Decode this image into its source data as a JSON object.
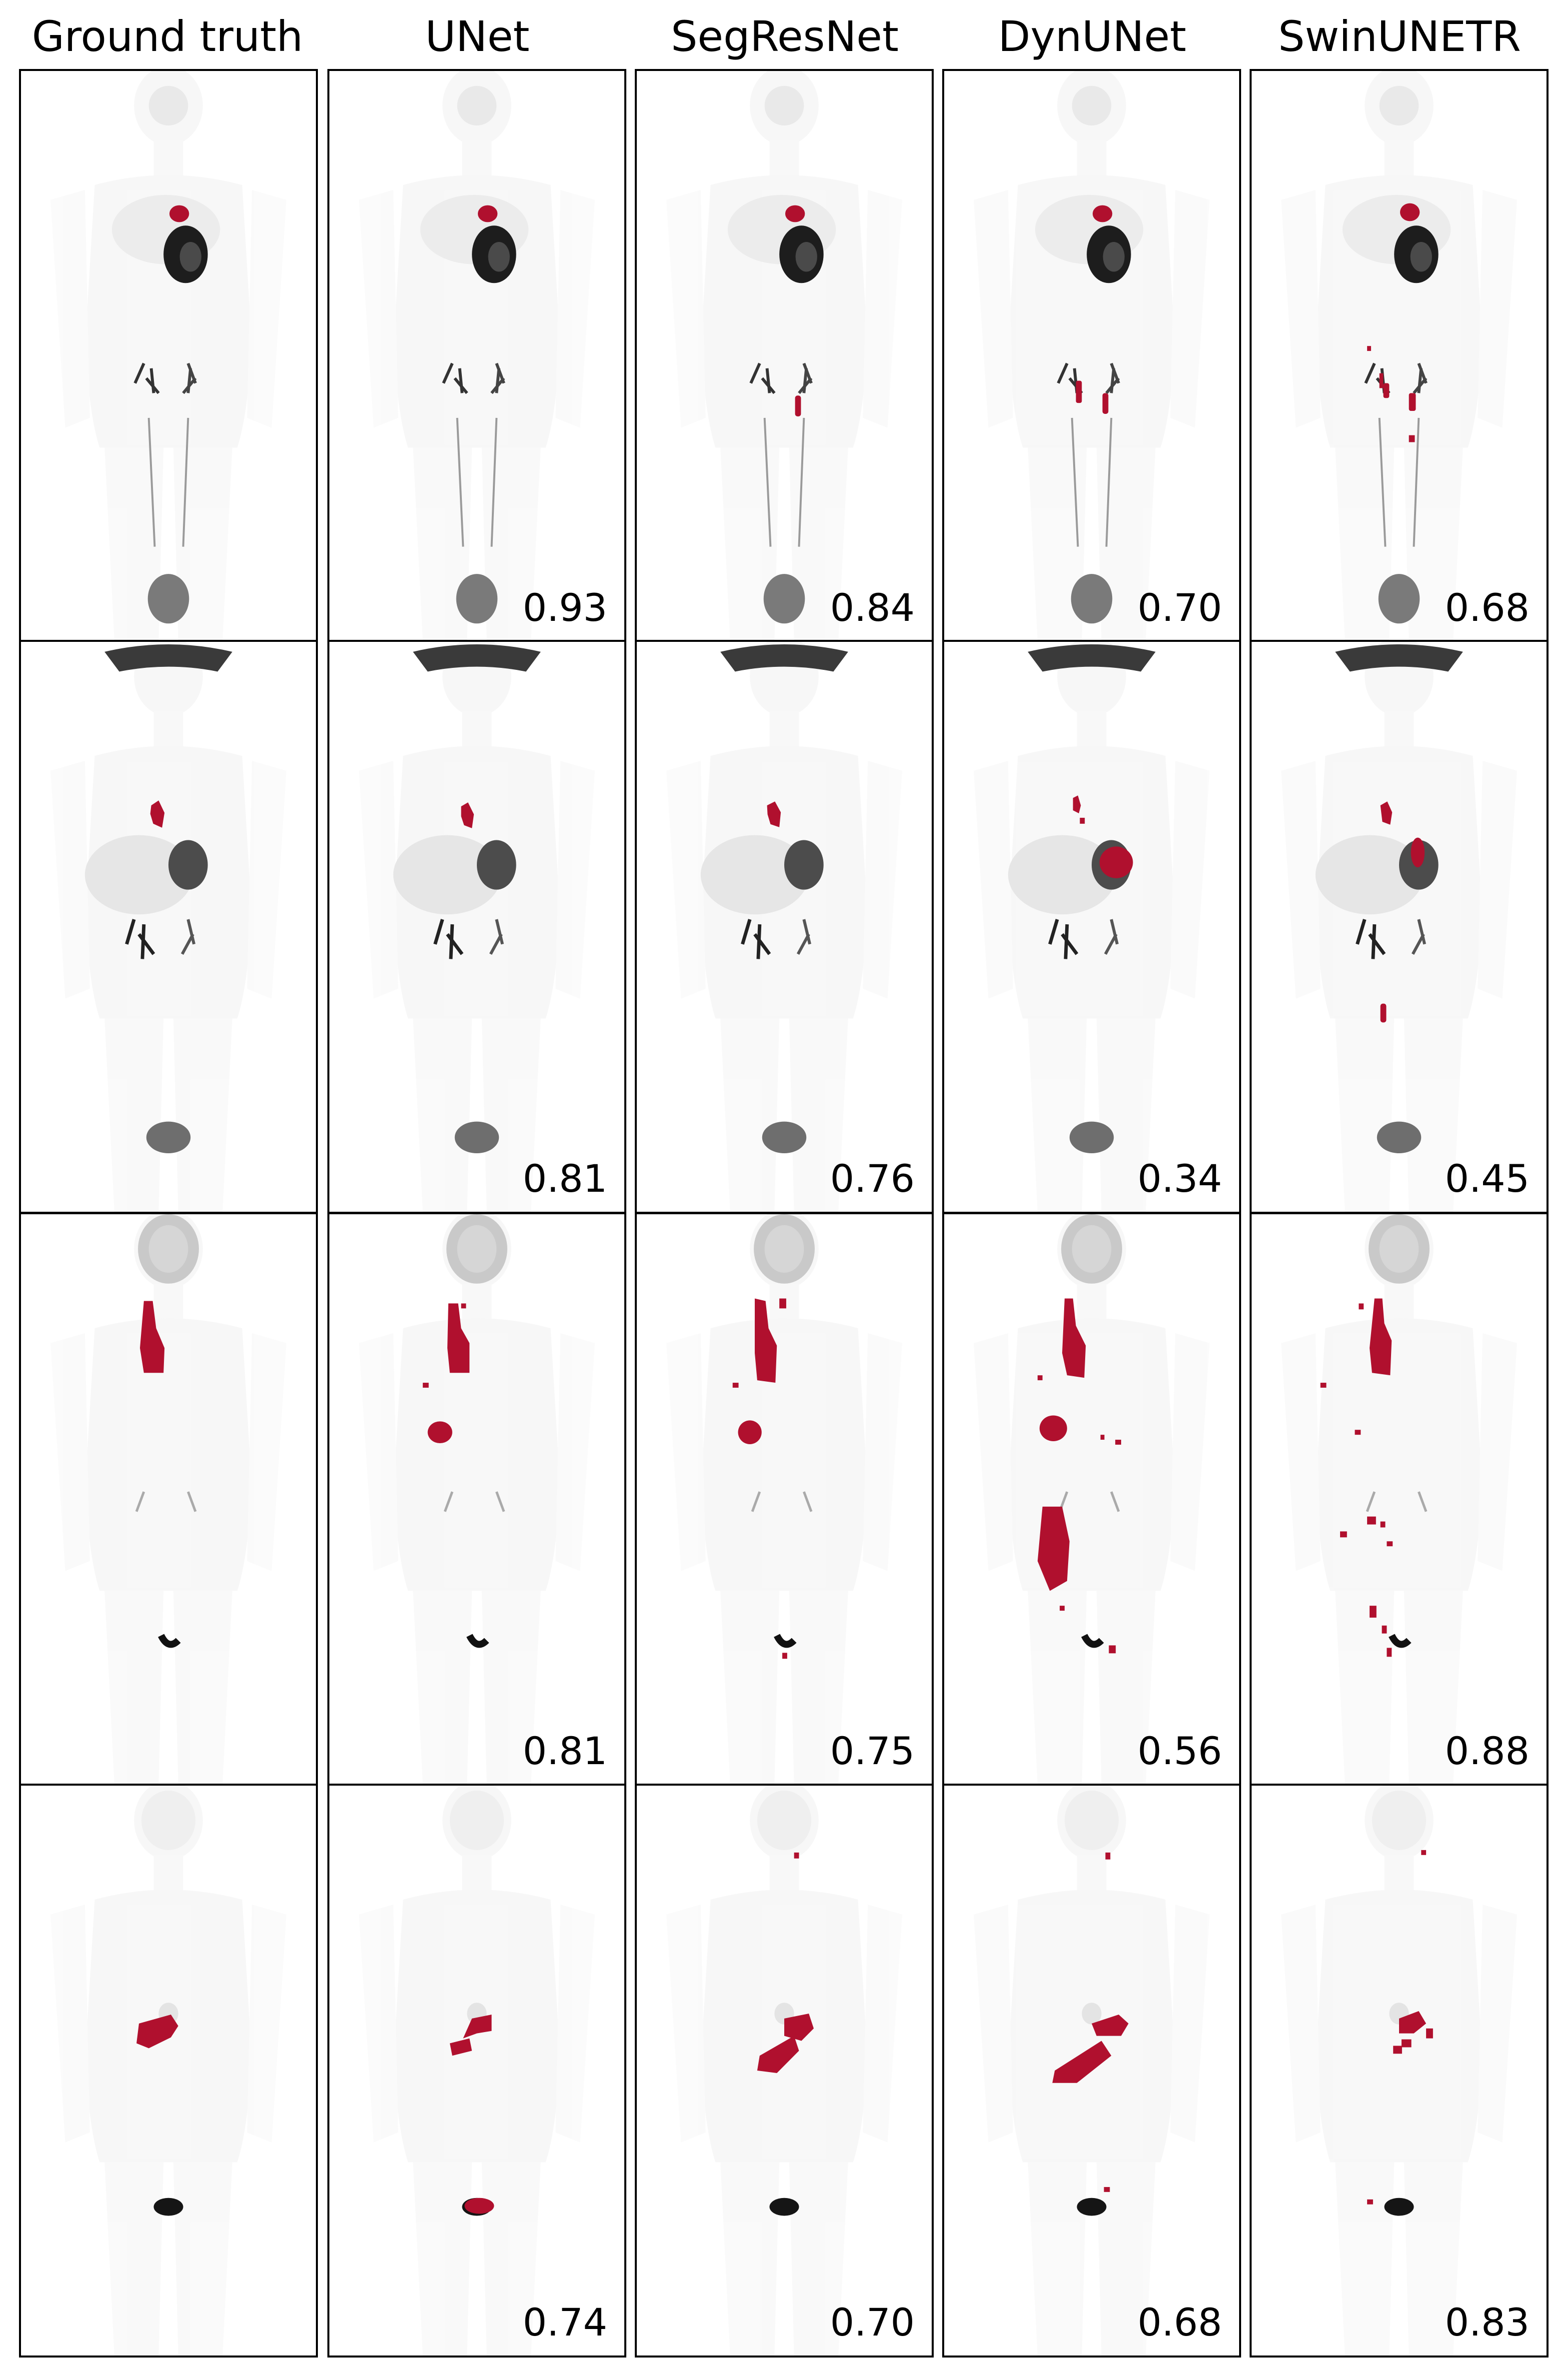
{
  "columns": [
    "Ground truth",
    "UNet",
    "SegResNet",
    "DynUNet",
    "SwinUNETR"
  ],
  "scores": [
    [
      null,
      "0.93",
      "0.84",
      "0.70",
      "0.68"
    ],
    [
      null,
      "0.81",
      "0.76",
      "0.34",
      "0.45"
    ],
    [
      null,
      "0.81",
      "0.75",
      "0.56",
      "0.88"
    ],
    [
      null,
      "0.74",
      "0.70",
      "0.68",
      "0.83"
    ]
  ],
  "colors": {
    "mask": "#B0102E",
    "uptake": "#222222",
    "body": "#ececec",
    "frame": "#000000"
  }
}
